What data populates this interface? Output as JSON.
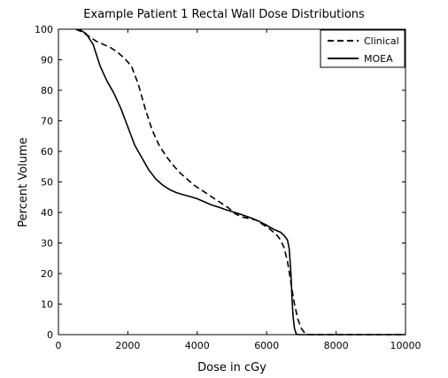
{
  "chart_data": {
    "type": "line",
    "title": "Example Patient 1 Rectal Wall Dose Distributions",
    "xlabel": "Dose in cGy",
    "ylabel": "Percent Volume",
    "xlim": [
      0,
      10000
    ],
    "ylim": [
      0,
      100
    ],
    "xticks": [
      "0",
      "2000",
      "4000",
      "6000",
      "8000",
      "10000"
    ],
    "yticks": [
      "0",
      "10",
      "20",
      "30",
      "40",
      "50",
      "60",
      "70",
      "80",
      "90",
      "100"
    ],
    "grid": false,
    "legend_position": "top-right",
    "series": [
      {
        "name": "Clinical",
        "style": "dashed",
        "color": "#000000",
        "x": [
          500,
          700,
          900,
          1100,
          1300,
          1500,
          1700,
          1900,
          2100,
          2300,
          2500,
          2700,
          2900,
          3100,
          3300,
          3500,
          3700,
          3900,
          4100,
          4300,
          4500,
          4700,
          4900,
          5100,
          5300,
          5500,
          5700,
          5900,
          6100,
          6300,
          6400,
          6500,
          6600,
          6700,
          6800,
          6900,
          7000,
          7100,
          7200,
          8000,
          10000
        ],
        "y": [
          100,
          99,
          97.5,
          96,
          95,
          94,
          92.5,
          90.5,
          88,
          82,
          74,
          67,
          62,
          58.5,
          55.5,
          53,
          51,
          49,
          47.5,
          46,
          44.5,
          43,
          41.5,
          39.5,
          38.5,
          38,
          37.5,
          36,
          34.5,
          32.5,
          31,
          28.5,
          24,
          17,
          10,
          5,
          2,
          0.5,
          0,
          0,
          0
        ]
      },
      {
        "name": "MOEA",
        "style": "solid",
        "color": "#000000",
        "x": [
          600,
          800,
          1000,
          1200,
          1400,
          1600,
          1800,
          2000,
          2200,
          2400,
          2600,
          2800,
          3000,
          3200,
          3400,
          3600,
          3800,
          4000,
          4200,
          4400,
          4600,
          4800,
          5000,
          5200,
          5400,
          5600,
          5800,
          6000,
          6200,
          6400,
          6500,
          6600,
          6650,
          6700,
          6730,
          6760,
          6800,
          6850,
          6900,
          7000,
          8000,
          10000
        ],
        "y": [
          100,
          98.5,
          95,
          88,
          83,
          79,
          74,
          68,
          62,
          58,
          54,
          51,
          49,
          47.5,
          46.5,
          45.8,
          45.2,
          44.5,
          43.5,
          42.5,
          41.8,
          41,
          40.3,
          39.6,
          38.8,
          38,
          37,
          35.8,
          34.5,
          33.5,
          32.5,
          31,
          28,
          20,
          12,
          6,
          2,
          0.3,
          0,
          0,
          0,
          0
        ]
      }
    ]
  }
}
